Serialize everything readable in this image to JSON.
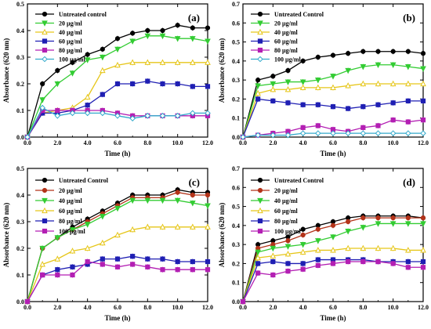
{
  "chart_data": [
    {
      "type": "line",
      "panel_label": "(a)",
      "xlabel": "Time (h)",
      "ylabel": "Absorbance (620 nm)",
      "xlim": [
        0,
        12
      ],
      "ylim": [
        0,
        0.5
      ],
      "x_ticks": [
        "0.0",
        "2.0",
        "4.0",
        "6.0",
        "8.0",
        "10.0",
        "12.0"
      ],
      "y_ticks": [
        "0.0",
        "0.1",
        "0.2",
        "0.3",
        "0.4",
        "0.5"
      ],
      "legend_position": "top-left",
      "x": [
        0,
        1,
        2,
        3,
        4,
        5,
        6,
        7,
        8,
        9,
        10,
        11,
        12
      ],
      "series": [
        {
          "name": "Untreated control",
          "color": "#000000",
          "marker": "circle",
          "values": [
            0,
            0.2,
            0.25,
            0.28,
            0.31,
            0.33,
            0.37,
            0.39,
            0.4,
            0.4,
            0.42,
            0.41,
            0.41
          ]
        },
        {
          "name": "20 µg/ml",
          "color": "#33cc33",
          "marker": "triangle-down",
          "values": [
            0,
            0.14,
            0.2,
            0.24,
            0.29,
            0.3,
            0.33,
            0.36,
            0.38,
            0.38,
            0.37,
            0.37,
            0.36
          ]
        },
        {
          "name": "40 µg/ml",
          "color": "#e6c619",
          "marker": "triangle-up",
          "values": [
            0,
            0.09,
            0.1,
            0.11,
            0.15,
            0.25,
            0.27,
            0.28,
            0.28,
            0.28,
            0.28,
            0.28,
            0.28
          ]
        },
        {
          "name": "60 µg/ml",
          "color": "#1f1fb3",
          "marker": "square",
          "values": [
            0,
            0.09,
            0.09,
            0.1,
            0.12,
            0.16,
            0.2,
            0.2,
            0.21,
            0.2,
            0.2,
            0.19,
            0.19
          ]
        },
        {
          "name": "80 µg/ml",
          "color": "#b31fb3",
          "marker": "square",
          "values": [
            0,
            0.1,
            0.1,
            0.1,
            0.1,
            0.1,
            0.09,
            0.08,
            0.08,
            0.08,
            0.08,
            0.08,
            0.08
          ]
        },
        {
          "name": "100 µg/ml",
          "color": "#33aacc",
          "marker": "diamond",
          "values": [
            0,
            0.11,
            0.08,
            0.09,
            0.09,
            0.09,
            0.08,
            0.07,
            0.08,
            0.08,
            0.08,
            0.09,
            0.09
          ]
        }
      ]
    },
    {
      "type": "line",
      "panel_label": "(b)",
      "xlabel": "Time (h)",
      "ylabel": "Absorbance (620 nm)",
      "xlim": [
        0,
        12
      ],
      "ylim": [
        0,
        0.7
      ],
      "x_ticks": [
        "0.0",
        "2.0",
        "4.0",
        "6.0",
        "8.0",
        "10.0",
        "12.0"
      ],
      "y_ticks": [
        "0.0",
        "0.1",
        "0.2",
        "0.3",
        "0.4",
        "0.5",
        "0.6",
        "0.7"
      ],
      "legend_position": "top-left",
      "x": [
        0,
        1,
        2,
        3,
        4,
        5,
        6,
        7,
        8,
        9,
        10,
        11,
        12
      ],
      "series": [
        {
          "name": "Untreated Control",
          "color": "#000000",
          "marker": "circle",
          "values": [
            0,
            0.3,
            0.32,
            0.35,
            0.4,
            0.42,
            0.43,
            0.44,
            0.45,
            0.45,
            0.45,
            0.45,
            0.44
          ]
        },
        {
          "name": "20 µg/ml",
          "color": "#33cc33",
          "marker": "triangle-down",
          "values": [
            0,
            0.27,
            0.28,
            0.29,
            0.29,
            0.3,
            0.32,
            0.35,
            0.37,
            0.38,
            0.38,
            0.37,
            0.36
          ]
        },
        {
          "name": "40 µg/ml",
          "color": "#e6c619",
          "marker": "triangle-up",
          "values": [
            0,
            0.23,
            0.25,
            0.25,
            0.26,
            0.26,
            0.26,
            0.27,
            0.28,
            0.28,
            0.28,
            0.28,
            0.28
          ]
        },
        {
          "name": "60 µg/ml",
          "color": "#1f1fb3",
          "marker": "square",
          "values": [
            0,
            0.2,
            0.19,
            0.18,
            0.17,
            0.17,
            0.16,
            0.15,
            0.16,
            0.17,
            0.18,
            0.19,
            0.19
          ]
        },
        {
          "name": "80 µg/ml",
          "color": "#b31fb3",
          "marker": "square",
          "values": [
            0,
            0.01,
            0.02,
            0.03,
            0.05,
            0.06,
            0.04,
            0.03,
            0.05,
            0.06,
            0.09,
            0.08,
            0.09
          ]
        },
        {
          "name": "100 µg/ml",
          "color": "#33aacc",
          "marker": "diamond",
          "values": [
            0,
            0.01,
            0.01,
            0.01,
            0.02,
            0.02,
            0.02,
            0.02,
            0.02,
            0.02,
            0.02,
            0.02,
            0.02
          ]
        }
      ]
    },
    {
      "type": "line",
      "panel_label": "(c)",
      "xlabel": "Time (h)",
      "ylabel": "Absorbance (620 nm)",
      "xlim": [
        0,
        12
      ],
      "ylim": [
        0,
        0.5
      ],
      "x_ticks": [
        "0.0",
        "2.0",
        "4.0",
        "6.0",
        "8.0",
        "10.0",
        "12.0"
      ],
      "y_ticks": [
        "0.0",
        "0.1",
        "0.2",
        "0.3",
        "0.4",
        "0.5"
      ],
      "legend_position": "top-left",
      "x": [
        0,
        1,
        2,
        3,
        4,
        5,
        6,
        7,
        8,
        9,
        10,
        11,
        12
      ],
      "series": [
        {
          "name": "Untreated Control",
          "color": "#000000",
          "marker": "circle",
          "values": [
            0,
            0.2,
            0.24,
            0.28,
            0.31,
            0.34,
            0.37,
            0.4,
            0.4,
            0.4,
            0.42,
            0.41,
            0.41
          ]
        },
        {
          "name": "20 µg/ml",
          "color": "#b33319",
          "marker": "circle",
          "values": [
            0,
            0.2,
            0.24,
            0.27,
            0.3,
            0.33,
            0.36,
            0.39,
            0.39,
            0.39,
            0.41,
            0.4,
            0.4
          ]
        },
        {
          "name": "40 µg/ml",
          "color": "#33cc33",
          "marker": "triangle-down",
          "values": [
            0,
            0.2,
            0.24,
            0.27,
            0.29,
            0.32,
            0.35,
            0.38,
            0.38,
            0.38,
            0.38,
            0.37,
            0.36
          ]
        },
        {
          "name": "60 µg/ml",
          "color": "#e6c619",
          "marker": "triangle-up",
          "values": [
            0,
            0.14,
            0.16,
            0.19,
            0.2,
            0.22,
            0.25,
            0.27,
            0.28,
            0.28,
            0.28,
            0.28,
            0.28
          ]
        },
        {
          "name": "80 µg/ml",
          "color": "#1f1fb3",
          "marker": "square",
          "values": [
            0,
            0.1,
            0.12,
            0.13,
            0.14,
            0.16,
            0.16,
            0.17,
            0.16,
            0.16,
            0.15,
            0.15,
            0.15
          ]
        },
        {
          "name": "100 µg/ml",
          "color": "#b31fb3",
          "marker": "square",
          "values": [
            0,
            0.1,
            0.1,
            0.1,
            0.15,
            0.14,
            0.13,
            0.14,
            0.13,
            0.12,
            0.12,
            0.12,
            0.12
          ]
        }
      ]
    },
    {
      "type": "line",
      "panel_label": "(d)",
      "xlabel": "Time (h)",
      "ylabel": "Absorbance (620 nm)",
      "xlim": [
        0,
        12
      ],
      "ylim": [
        0,
        0.7
      ],
      "x_ticks": [
        "0.0",
        "2.0",
        "4.0",
        "6.0",
        "8.0",
        "10.0",
        "12.0"
      ],
      "y_ticks": [
        "0.0",
        "0.1",
        "0.2",
        "0.3",
        "0.4",
        "0.5",
        "0.6",
        "0.7"
      ],
      "legend_position": "top-left",
      "x": [
        0,
        1,
        2,
        3,
        4,
        5,
        6,
        7,
        8,
        9,
        10,
        11,
        12
      ],
      "series": [
        {
          "name": "Untreated Control",
          "color": "#000000",
          "marker": "circle",
          "values": [
            0,
            0.3,
            0.32,
            0.34,
            0.38,
            0.4,
            0.42,
            0.44,
            0.45,
            0.45,
            0.45,
            0.45,
            0.44
          ]
        },
        {
          "name": "20 µg/ml",
          "color": "#b33319",
          "marker": "circle",
          "values": [
            0,
            0.28,
            0.3,
            0.32,
            0.35,
            0.38,
            0.4,
            0.42,
            0.44,
            0.44,
            0.44,
            0.44,
            0.44
          ]
        },
        {
          "name": "40 µg/ml",
          "color": "#33cc33",
          "marker": "triangle-down",
          "values": [
            0,
            0.26,
            0.28,
            0.29,
            0.3,
            0.32,
            0.34,
            0.37,
            0.39,
            0.41,
            0.41,
            0.41,
            0.41
          ]
        },
        {
          "name": "60 µg/ml",
          "color": "#e6c619",
          "marker": "triangle-up",
          "values": [
            0,
            0.23,
            0.24,
            0.25,
            0.26,
            0.27,
            0.27,
            0.28,
            0.28,
            0.28,
            0.28,
            0.27,
            0.27
          ]
        },
        {
          "name": "80 µg/ml",
          "color": "#1f1fb3",
          "marker": "square",
          "values": [
            0,
            0.2,
            0.21,
            0.2,
            0.2,
            0.22,
            0.22,
            0.22,
            0.22,
            0.21,
            0.21,
            0.21,
            0.21
          ]
        },
        {
          "name": "100 µg/ml",
          "color": "#b31fb3",
          "marker": "square",
          "values": [
            0,
            0.15,
            0.14,
            0.16,
            0.17,
            0.19,
            0.2,
            0.21,
            0.21,
            0.21,
            0.2,
            0.18,
            0.18
          ]
        }
      ]
    }
  ]
}
